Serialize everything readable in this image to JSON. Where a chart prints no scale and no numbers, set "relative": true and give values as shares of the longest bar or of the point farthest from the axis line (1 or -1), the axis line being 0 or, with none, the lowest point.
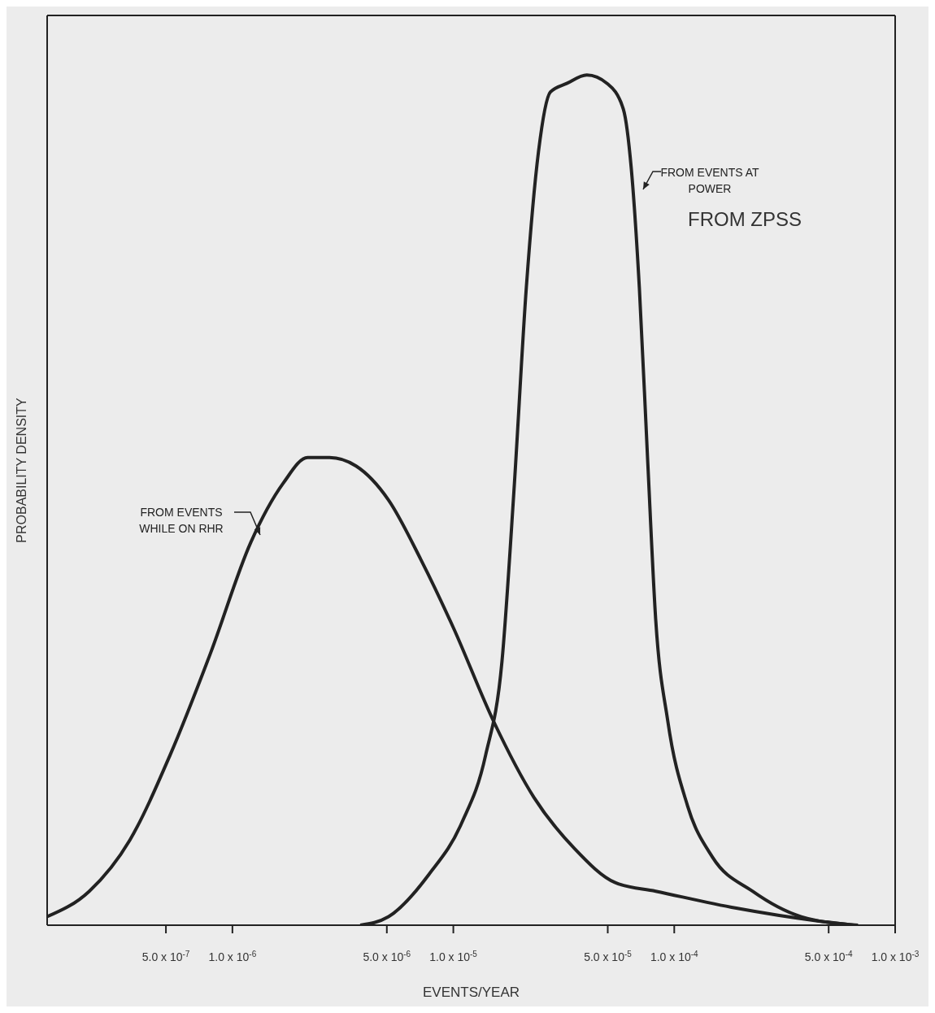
{
  "chart_data": {
    "type": "line",
    "relative": true,
    "xlabel": "EVENTS/YEAR",
    "ylabel": "PROBABILITY DENSITY",
    "log": "x",
    "xlim": [
      1.45e-07,
      0.001
    ],
    "xticks": [
      {
        "value": 5e-07,
        "label": "5.0 x 10$^{-7}$"
      },
      {
        "value": 1e-06,
        "label": "1.0 x 10$^{-6}$"
      },
      {
        "value": 5e-06,
        "label": "5.0 x 10$^{-6}$"
      },
      {
        "value": 1e-05,
        "label": "1.0 x 10$^{-5}$"
      },
      {
        "value": 5e-05,
        "label": "5.0 x 10$^{-5}$"
      },
      {
        "value": 0.0001,
        "label": "1.0 x 10$^{-4}$"
      },
      {
        "value": 0.0005,
        "label": "5.0 x 10$^{-4}$"
      },
      {
        "value": 0.001,
        "label": "1.0 x 10$^{-3}$"
      }
    ],
    "marker": "none",
    "line_style": "solid",
    "annotations": [
      "FROM ZPSS"
    ],
    "series": [
      {
        "name": "FROM EVENTS WHILE ON RHR",
        "color": "#222222",
        "x": [
          1.45e-07,
          2.25e-07,
          3.43e-07,
          5.22e-07,
          7.96e-07,
          1.21e-06,
          1.7e-06,
          2.19e-06,
          2.75e-06,
          3.63e-06,
          5.09e-06,
          7.13e-06,
          1e-05,
          1.52e-05,
          2.32e-05,
          3.54e-05,
          5.41e-05,
          8.24e-05,
          0.000191,
          0.000445,
          0.00065
        ],
        "values": [
          0.01,
          0.04,
          0.1,
          0.2,
          0.32,
          0.45,
          0.52,
          0.55,
          0.55,
          0.54,
          0.5,
          0.43,
          0.35,
          0.24,
          0.15,
          0.09,
          0.05,
          0.04,
          0.02,
          0.005,
          0
        ]
      },
      {
        "name": "FROM EVENTS AT POWER",
        "color": "#222222",
        "x": [
          3.79e-06,
          5.09e-06,
          7.77e-06,
          1.09e-05,
          1.4e-05,
          1.66e-05,
          1.88e-05,
          2.14e-05,
          2.43e-05,
          2.75e-05,
          3.26e-05,
          4.02e-05,
          4.97e-05,
          5.88e-05,
          6.39e-05,
          6.95e-05,
          7.57e-05,
          8.24e-05,
          9.35e-05,
          0.000115,
          0.000149,
          0.000226,
          0.000376,
          0.000679
        ],
        "values": [
          0,
          0.01,
          0.06,
          0.12,
          0.2,
          0.31,
          0.51,
          0.75,
          0.91,
          0.98,
          0.99,
          1,
          0.99,
          0.96,
          0.89,
          0.75,
          0.55,
          0.36,
          0.24,
          0.14,
          0.08,
          0.04,
          0.01,
          0
        ]
      }
    ]
  }
}
